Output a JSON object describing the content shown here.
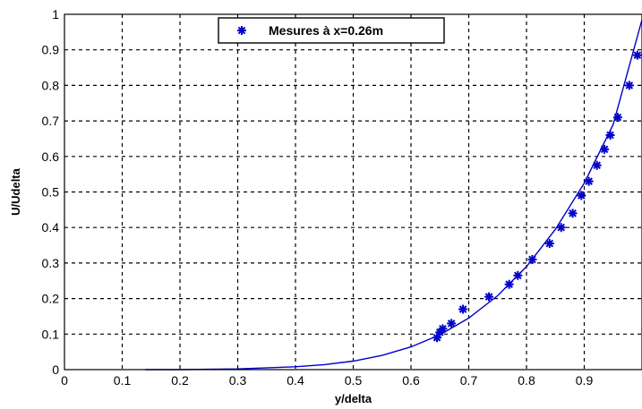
{
  "chart_data": {
    "type": "scatter",
    "xlabel": "y/delta",
    "ylabel": "U/Udelta",
    "xlim": [
      0,
      1
    ],
    "ylim": [
      0,
      1
    ],
    "x_ticks": [
      "0",
      "0.1",
      "0.2",
      "0.3",
      "0.4",
      "0.5",
      "0.6",
      "0.7",
      "0.8",
      "0.9"
    ],
    "y_ticks": [
      "0",
      "0.1",
      "0.2",
      "0.3",
      "0.4",
      "0.5",
      "0.6",
      "0.7",
      "0.8",
      "0.9",
      "1"
    ],
    "grid": true,
    "legend_position": "top-center",
    "series_color": "#0000cc",
    "series": [
      {
        "name": "Mesures à x=0.26m",
        "marker": "asterisk",
        "x": [
          0.645,
          0.65,
          0.655,
          0.67,
          0.69,
          0.735,
          0.77,
          0.785,
          0.81,
          0.84,
          0.86,
          0.88,
          0.895,
          0.908,
          0.922,
          0.935,
          0.945,
          0.958,
          0.978,
          0.992
        ],
        "y": [
          0.09,
          0.105,
          0.115,
          0.13,
          0.17,
          0.205,
          0.24,
          0.265,
          0.31,
          0.355,
          0.4,
          0.44,
          0.49,
          0.53,
          0.575,
          0.62,
          0.66,
          0.71,
          0.8,
          0.885
        ]
      },
      {
        "marker": "none",
        "line": "solid",
        "x": [
          0.14,
          0.2,
          0.3,
          0.4,
          0.45,
          0.5,
          0.55,
          0.6,
          0.65,
          0.7,
          0.75,
          0.8,
          0.85,
          0.9,
          0.95,
          1.0
        ],
        "y": [
          0.0,
          0.0,
          0.002,
          0.008,
          0.014,
          0.024,
          0.04,
          0.064,
          0.098,
          0.145,
          0.208,
          0.29,
          0.395,
          0.525,
          0.69,
          0.985
        ]
      }
    ]
  }
}
